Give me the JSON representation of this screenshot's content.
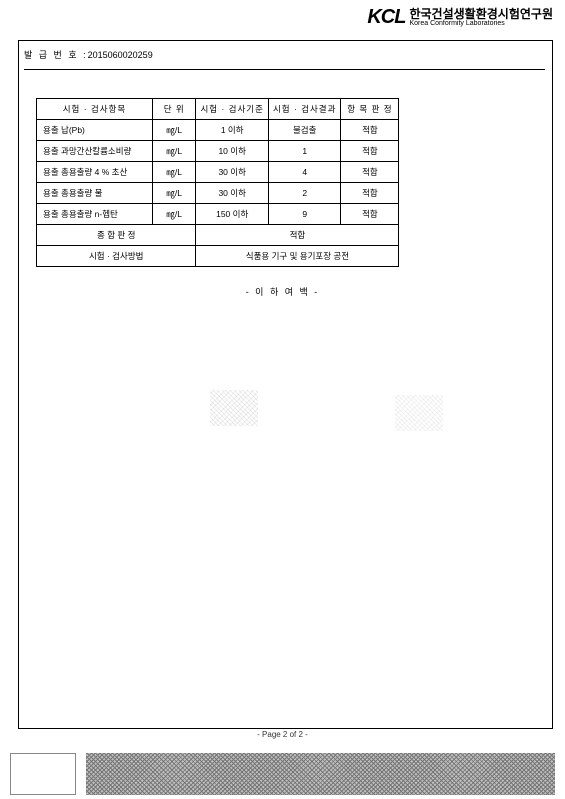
{
  "header": {
    "logo_text": "KCL",
    "org_kr": "한국건설생활환경시험연구원",
    "org_en": "Korea Conformity Laboratories"
  },
  "doc_no": {
    "label": "발 급 번 호 :",
    "value": "2015060020259"
  },
  "table": {
    "columns": [
      "시험 · 검사항목",
      "단 위",
      "시험 · 검사기준",
      "시험 · 검사결과",
      "항 목 판 정"
    ],
    "col_widths_pct": [
      32,
      12,
      20,
      20,
      16
    ],
    "rows": [
      [
        "용출 납(Pb)",
        "㎎/L",
        "1 이하",
        "불검출",
        "적합"
      ],
      [
        "용출 과망간산칼륨소비량",
        "㎎/L",
        "10 이하",
        "1",
        "적합"
      ],
      [
        "용출 총용출량 4 % 초산",
        "㎎/L",
        "30 이하",
        "4",
        "적합"
      ],
      [
        "용출 총용출량 물",
        "㎎/L",
        "30 이하",
        "2",
        "적합"
      ],
      [
        "용출 총용출량 n-헵탄",
        "㎎/L",
        "150 이하",
        "9",
        "적합"
      ]
    ],
    "overall_label": "종 합 판 정",
    "overall_value": "적합",
    "method_label": "시험 · 검사방법",
    "method_value": "식품용 기구 및 용기포장 공전"
  },
  "blank_note": "- 이 하 여 백 -",
  "page_label": "- Page 2 of 2 -",
  "colors": {
    "text": "#000000",
    "border": "#000000",
    "background": "#ffffff",
    "footer_hatch": "#777777"
  },
  "fonts": {
    "body_pt": 8.5,
    "header_logo_pt": 20,
    "org_kr_pt": 12,
    "org_en_pt": 7
  }
}
